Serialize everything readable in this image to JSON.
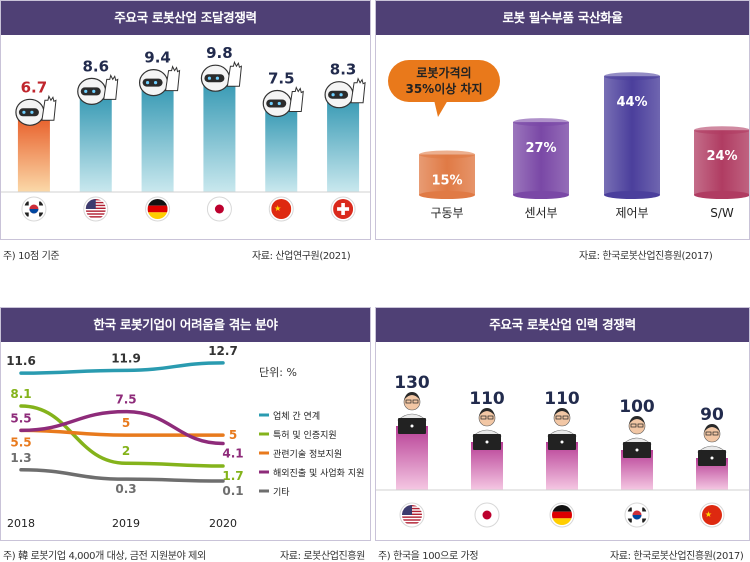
{
  "colors": {
    "header_bg": "#4f4075",
    "robot_bar_top": "#3a9bb5",
    "robot_bar_bottom": "#c9e8ee",
    "korea_bar_top": "#e8612c",
    "korea_bar_bottom": "#fbd9a9",
    "korea_value": "#c0262d",
    "value_text": "#222b4d",
    "workforce_bar_top": "#b73e95",
    "workforce_bar_bottom": "#f5c8e3",
    "callout_bg": "#e9791b",
    "table_line": "#2a9bb0",
    "patent_line": "#84b31b",
    "info_line": "#e87a1d",
    "overseas_line": "#8e2b7a",
    "etc_line": "#6e6e6e"
  },
  "panels": {
    "competitiveness": {
      "title": "주요국 로봇산업 조달경쟁력",
      "note": "주) 10점 기준",
      "source": "자료: 산업연구원(2021)"
    },
    "localization": {
      "title": "로봇 필수부품 국산화율",
      "callout_line1": "로봇가격의",
      "callout_line2": "35%이상 차지",
      "source": "자료: 한국로봇산업진흥원(2017)"
    },
    "difficulties": {
      "title": "한국 로봇기업이 어려움을 겪는 분야",
      "unit": "단위: %",
      "note": "주) 韓 로봇기업 4,000개 대상, 금전 지원분야 제외",
      "source": "자료: 로봇산업진흥원"
    },
    "workforce": {
      "title": "주요국 로봇산업 인력 경쟁력",
      "note": "주) 한국을 100으로 가정",
      "source": "자료: 한국로봇산업진흥원(2017)"
    }
  },
  "chart_data": [
    {
      "type": "bar",
      "title": "주요국 로봇산업 조달경쟁력",
      "categories": [
        "korea-flag-icon",
        "usa-flag-icon",
        "germany-flag-icon",
        "japan-flag-icon",
        "china-flag-icon",
        "switzerland-flag-icon"
      ],
      "values": [
        6.7,
        8.6,
        9.4,
        9.8,
        7.5,
        8.3
      ],
      "labels": [
        "6.7",
        "8.6",
        "9.4",
        "9.8",
        "7.5",
        "8.3"
      ],
      "ylim": [
        0,
        10
      ]
    },
    {
      "type": "bar",
      "title": "로봇 필수부품 국산화율",
      "categories": [
        "구동부",
        "센서부",
        "제어부",
        "S/W"
      ],
      "values": [
        15,
        27,
        44,
        24
      ],
      "labels": [
        "15%",
        "27%",
        "44%",
        "24%"
      ],
      "colors": [
        "#e07a45",
        "#7a48a6",
        "#4b3f9c",
        "#b03c62"
      ],
      "ylim": [
        0,
        50
      ]
    },
    {
      "type": "line",
      "title": "한국 로봇기업이 어려움을 겪는 분야",
      "x": [
        "2018",
        "2019",
        "2020"
      ],
      "ylim": [
        0,
        13
      ],
      "series": [
        {
          "name": "업체 간 연계",
          "values": [
            11.6,
            11.9,
            12.7
          ],
          "labels": [
            "11.6",
            "11.9",
            "12.7"
          ],
          "color": "#2a9bb0"
        },
        {
          "name": "특허 및 인증지원",
          "values": [
            8.1,
            2,
            1.7
          ],
          "labels": [
            "8.1",
            "2",
            "1.7"
          ],
          "color": "#84b31b"
        },
        {
          "name": "관련기술 정보지원",
          "values": [
            5.5,
            5,
            5
          ],
          "labels": [
            "5.5",
            "5",
            "5"
          ],
          "color": "#e87a1d"
        },
        {
          "name": "해외진출 및 사업화 지원",
          "values": [
            5.5,
            7.5,
            4.1
          ],
          "labels": [
            "5.5",
            "7.5",
            "4.1"
          ],
          "color": "#8e2b7a"
        },
        {
          "name": "기타",
          "values": [
            1.3,
            0.3,
            0.1
          ],
          "labels": [
            "1.3",
            "0.3",
            "0.1"
          ],
          "color": "#6e6e6e"
        }
      ]
    },
    {
      "type": "bar",
      "title": "주요국 로봇산업 인력 경쟁력",
      "categories": [
        "usa-flag-icon",
        "japan-flag-icon",
        "germany-flag-icon",
        "korea-flag-icon",
        "china-flag-icon"
      ],
      "values": [
        130,
        110,
        110,
        100,
        90
      ],
      "labels": [
        "130",
        "110",
        "110",
        "100",
        "90"
      ],
      "ylim": [
        0,
        150
      ]
    }
  ]
}
